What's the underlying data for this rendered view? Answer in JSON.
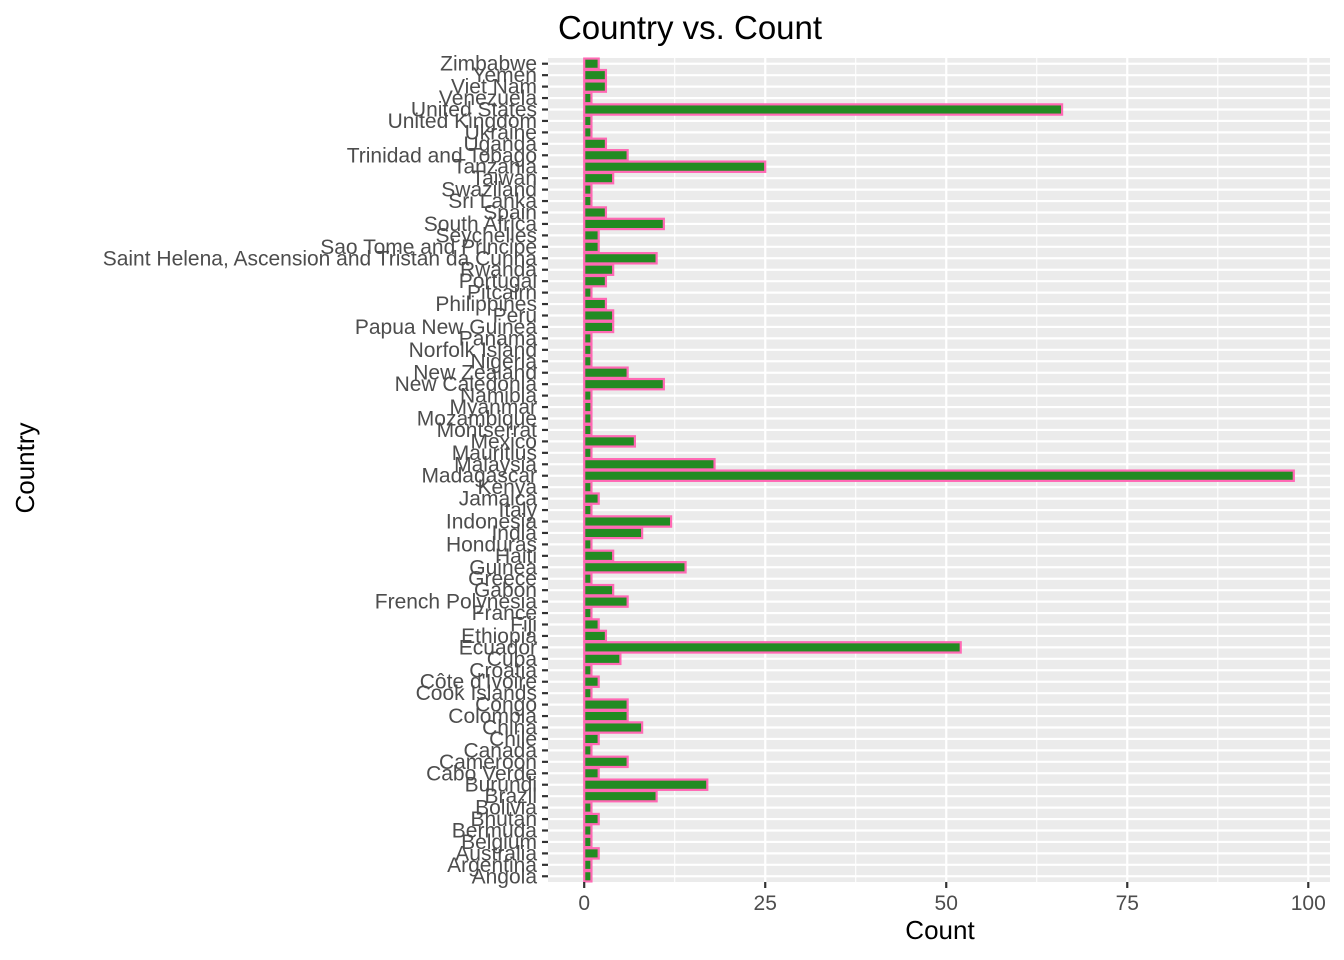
{
  "chart_data": {
    "type": "bar",
    "orientation": "horizontal",
    "title": "Country vs. Count",
    "xlabel": "Count",
    "ylabel": "Country",
    "xlim": [
      -5,
      103
    ],
    "xticks": [
      0,
      25,
      50,
      75,
      100
    ],
    "grid": true,
    "legend": "none",
    "colors": {
      "panel": "#ebebeb",
      "grid": "#ffffff",
      "bar_fill": "#228b22",
      "bar_stroke": "#ff69b4",
      "tick_text": "#4d4d4d",
      "tick_mark": "#333333"
    },
    "categories": [
      "Angola",
      "Argentina",
      "Australia",
      "Belgium",
      "Bermuda",
      "Bhutan",
      "Bolivia",
      "Brazil",
      "Burundi",
      "Cabo Verde",
      "Cameroon",
      "Canada",
      "Chile",
      "China",
      "Colombia",
      "Congo",
      "Cook Islands",
      "Côte d'Ivoire",
      "Croatia",
      "Cuba",
      "Ecuador",
      "Ethiopia",
      "Fiji",
      "France",
      "French Polynesia",
      "Gabon",
      "Greece",
      "Guinea",
      "Haiti",
      "Honduras",
      "India",
      "Indonesia",
      "Italy",
      "Jamaica",
      "Kenya",
      "Madagascar",
      "Malaysia",
      "Mauritius",
      "Mexico",
      "Montserrat",
      "Mozambique",
      "Myanmar",
      "Namibia",
      "New Caledonia",
      "New Zealand",
      "Nigeria",
      "Norfolk Island",
      "Panama",
      "Papua New Guinea",
      "Peru",
      "Philippines",
      "Pitcairn",
      "Portugal",
      "Rwanda",
      "Saint Helena, Ascension and Tristan da Cunha",
      "Sao Tome and Principe",
      "Seychelles",
      "South Africa",
      "Spain",
      "Sri Lanka",
      "Swaziland",
      "Taiwan",
      "Tanzania",
      "Trinidad and Tobago",
      "Uganda",
      "Ukraine",
      "United Kingdom",
      "United States",
      "Venezuela",
      "Viet Nam",
      "Yemen",
      "Zimbabwe"
    ],
    "values": [
      1,
      1,
      2,
      1,
      1,
      2,
      1,
      10,
      17,
      2,
      6,
      1,
      2,
      8,
      6,
      6,
      1,
      2,
      1,
      5,
      52,
      3,
      2,
      1,
      6,
      4,
      1,
      14,
      4,
      1,
      8,
      12,
      1,
      2,
      1,
      98,
      18,
      1,
      7,
      1,
      1,
      1,
      1,
      11,
      6,
      1,
      1,
      1,
      4,
      4,
      3,
      1,
      3,
      4,
      10,
      2,
      2,
      11,
      3,
      1,
      1,
      4,
      25,
      6,
      3,
      1,
      1,
      66,
      1,
      3,
      3,
      2
    ]
  }
}
